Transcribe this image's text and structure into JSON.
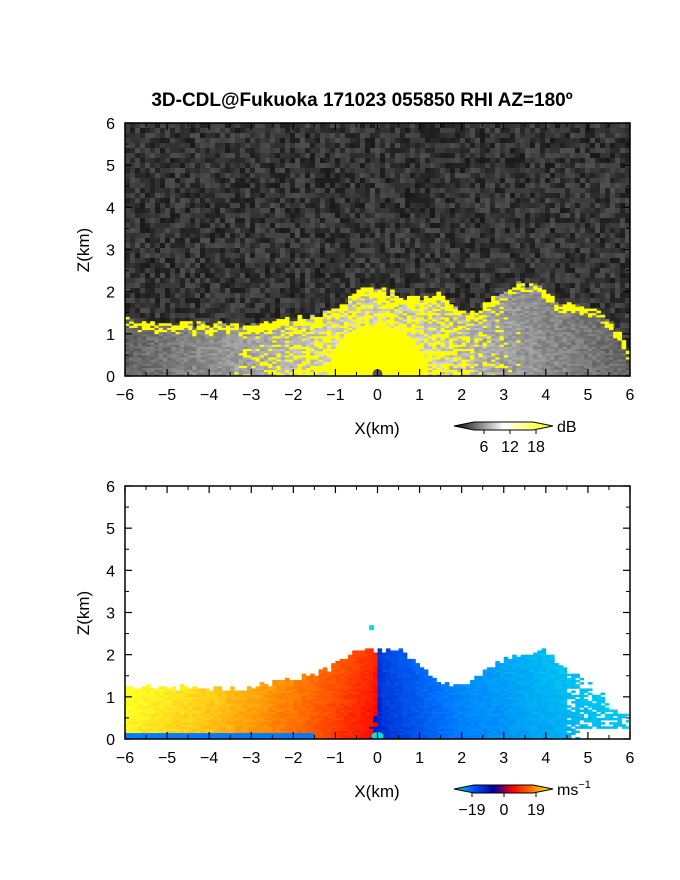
{
  "chart_data": [
    {
      "type": "heatmap",
      "title": "3D-CDL@Fukuoka 171023 055850 RHI AZ=180º",
      "xlabel": "X(km)",
      "ylabel": "Z(km)",
      "xlim": [
        -6,
        6
      ],
      "ylim": [
        0,
        6
      ],
      "xticks": [
        "-6",
        "-5",
        "-4",
        "-3",
        "-2",
        "-1",
        "0",
        "1",
        "2",
        "3",
        "4",
        "5",
        "6"
      ],
      "yticks": [
        "0",
        "1",
        "2",
        "3",
        "4",
        "5",
        "6"
      ],
      "colorbar": {
        "unit": "dB",
        "ticks": [
          "6",
          "12",
          "18"
        ],
        "colors": [
          "#000000",
          "#ffffff",
          "#ffff00"
        ]
      },
      "field": "signal intensity, grayscale with saturation in yellow",
      "echo_top_km": [
        [
          -6.0,
          1.3
        ],
        [
          -5.0,
          1.25
        ],
        [
          -4.0,
          1.2
        ],
        [
          -3.0,
          1.2
        ],
        [
          -2.0,
          1.35
        ],
        [
          -1.5,
          1.4
        ],
        [
          -1.0,
          1.6
        ],
        [
          -0.4,
          2.0
        ],
        [
          0.0,
          2.05
        ],
        [
          0.6,
          1.85
        ],
        [
          1.0,
          1.8
        ],
        [
          1.4,
          1.95
        ],
        [
          1.8,
          1.6
        ],
        [
          2.4,
          1.5
        ],
        [
          2.8,
          1.9
        ],
        [
          3.3,
          2.15
        ],
        [
          3.8,
          2.1
        ],
        [
          4.3,
          1.7
        ],
        [
          5.0,
          1.6
        ],
        [
          5.4,
          1.4
        ],
        [
          5.8,
          0.9
        ],
        [
          6.0,
          0.5
        ]
      ]
    },
    {
      "type": "heatmap",
      "title": "",
      "xlabel": "X(km)",
      "ylabel": "Z(km)",
      "xlim": [
        -6,
        6
      ],
      "ylim": [
        0,
        6
      ],
      "xticks": [
        "-6",
        "-5",
        "-4",
        "-3",
        "-2",
        "-1",
        "0",
        "1",
        "2",
        "3",
        "4",
        "5",
        "6"
      ],
      "yticks": [
        "0",
        "1",
        "2",
        "3",
        "4",
        "5",
        "6"
      ],
      "colorbar": {
        "unit": "ms",
        "unit_exp": "−1",
        "ticks": [
          "−19",
          "0",
          "19"
        ],
        "colors": [
          "#00e0e0",
          "#0050ff",
          "#0000a0",
          "#ff0000",
          "#ff8000",
          "#ffff00"
        ]
      },
      "field": "Doppler radial velocity",
      "velocity_ms": [
        {
          "x_km": -6,
          "v": 18
        },
        {
          "x_km": -4,
          "v": 14
        },
        {
          "x_km": -2,
          "v": 8
        },
        {
          "x_km": -0.2,
          "v": 1
        },
        {
          "x_km": 0.2,
          "v": -3
        },
        {
          "x_km": 2,
          "v": -10
        },
        {
          "x_km": 4,
          "v": -14
        },
        {
          "x_km": 6,
          "v": -17
        }
      ],
      "echo_top_km": [
        [
          -6.0,
          1.25
        ],
        [
          -5.0,
          1.2
        ],
        [
          -4.0,
          1.15
        ],
        [
          -3.0,
          1.2
        ],
        [
          -2.0,
          1.4
        ],
        [
          -1.2,
          1.6
        ],
        [
          -0.8,
          1.9
        ],
        [
          -0.4,
          2.1
        ],
        [
          0.0,
          2.05
        ],
        [
          0.5,
          2.1
        ],
        [
          1.0,
          1.8
        ],
        [
          1.4,
          1.3
        ],
        [
          1.8,
          1.25
        ],
        [
          2.4,
          1.45
        ],
        [
          3.0,
          1.9
        ],
        [
          3.5,
          2.0
        ],
        [
          4.0,
          2.1
        ],
        [
          4.5,
          1.6
        ],
        [
          5.0,
          1.3
        ],
        [
          5.6,
          0.8
        ],
        [
          5.9,
          0.5
        ]
      ]
    }
  ]
}
